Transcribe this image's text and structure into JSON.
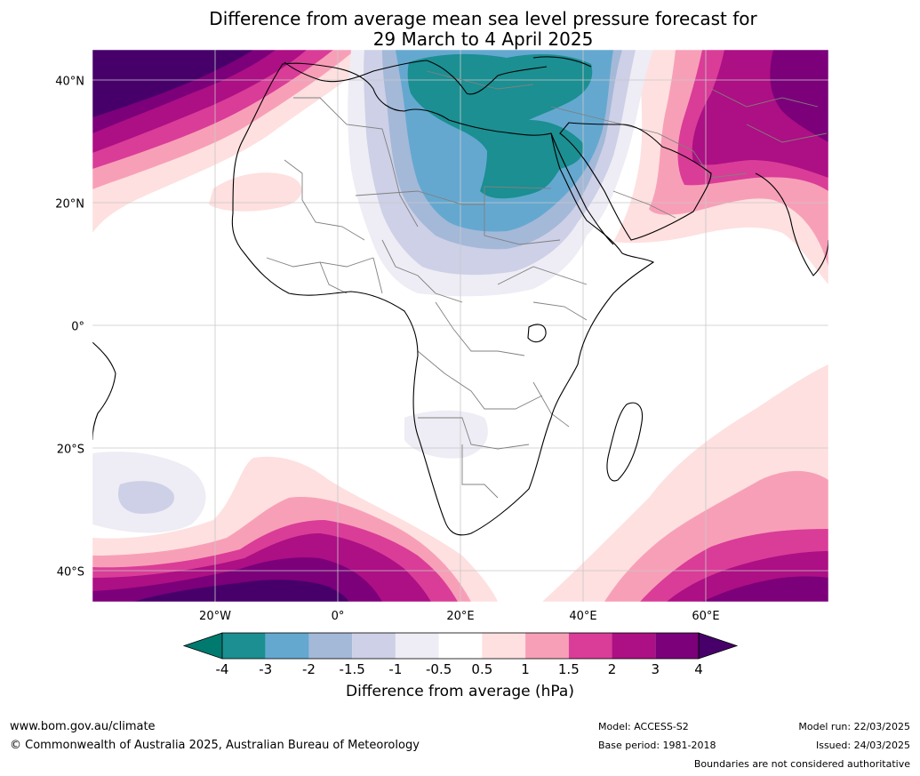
{
  "title": {
    "line1": "Difference from average mean sea level pressure forecast for",
    "line2": "29 March to 4 April 2025"
  },
  "map": {
    "lon_ticks": [
      {
        "value": -20,
        "label": "20°W"
      },
      {
        "value": 0,
        "label": "0°"
      },
      {
        "value": 20,
        "label": "20°E"
      },
      {
        "value": 40,
        "label": "40°E"
      },
      {
        "value": 60,
        "label": "60°E"
      }
    ],
    "lat_ticks": [
      {
        "value": 40,
        "label": "40°N"
      },
      {
        "value": 20,
        "label": "20°N"
      },
      {
        "value": 0,
        "label": "0°"
      },
      {
        "value": -20,
        "label": "20°S"
      },
      {
        "value": -40,
        "label": "40°S"
      }
    ],
    "lon_range": [
      -40,
      80
    ],
    "lat_range": [
      -45,
      45
    ],
    "grid": true
  },
  "colorbar": {
    "title": "Difference from average (hPa)",
    "labels": [
      "-4",
      "-3",
      "-2",
      "-1.5",
      "-1",
      "-0.5",
      "0.5",
      "1",
      "1.5",
      "2",
      "3",
      "4"
    ],
    "colors": [
      "#007a6e",
      "#1b8f92",
      "#64a8d0",
      "#a4b8d8",
      "#cdd0e6",
      "#eeecf4",
      "#ffffff",
      "#fde0df",
      "#f89fb8",
      "#d93d97",
      "#ad0f84",
      "#7b007a",
      "#47006a"
    ],
    "extend": "both"
  },
  "footer": {
    "website": "www.bom.gov.au/climate",
    "copyright": "© Commonwealth of Australia 2025, Australian Bureau of Meteorology",
    "model": "Model: ACCESS-S2",
    "base_period": "Base period: 1981-2018",
    "model_run": "Model run: 22/03/2025",
    "issued": "Issued: 24/03/2025",
    "disclaimer": "Boundaries are not considered authoritative"
  }
}
